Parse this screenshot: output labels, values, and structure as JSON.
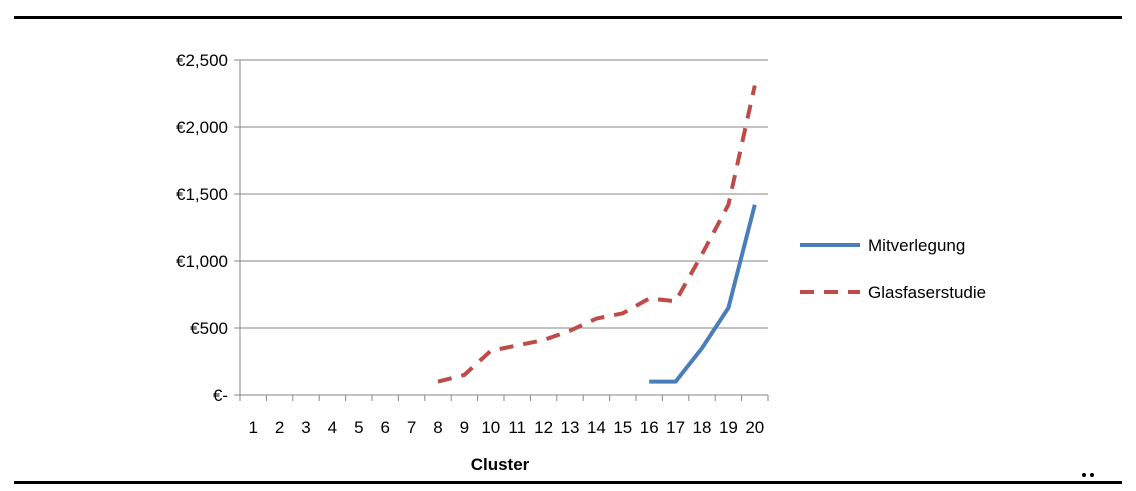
{
  "chart_data": {
    "type": "line",
    "title": "",
    "xlabel": "Cluster",
    "ylabel": "",
    "categories": [
      "1",
      "2",
      "3",
      "4",
      "5",
      "6",
      "7",
      "8",
      "9",
      "10",
      "11",
      "12",
      "13",
      "14",
      "15",
      "16",
      "17",
      "18",
      "19",
      "20"
    ],
    "y_tick_labels": [
      "€-",
      "€500",
      "€1,000",
      "€1,500",
      "€2,000",
      "€2,500"
    ],
    "ylim": [
      0,
      2500
    ],
    "grid": true,
    "legend_position": "right",
    "series": [
      {
        "name": "Mitverlegung",
        "color": "#4a7ebb",
        "style": "solid",
        "values": [
          null,
          null,
          null,
          null,
          null,
          null,
          null,
          null,
          null,
          null,
          null,
          null,
          null,
          null,
          null,
          100,
          100,
          350,
          650,
          1420
        ]
      },
      {
        "name": "Glasfaserstudie",
        "color": "#be4b48",
        "style": "dashed",
        "values": [
          null,
          null,
          null,
          null,
          null,
          null,
          null,
          100,
          150,
          330,
          370,
          410,
          480,
          570,
          610,
          720,
          700,
          1050,
          1420,
          2310
        ]
      }
    ]
  }
}
